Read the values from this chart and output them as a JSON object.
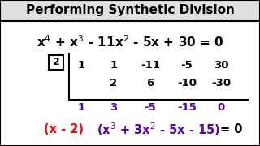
{
  "title": "Performing Synthetic Division",
  "title_color": "#000000",
  "title_bg": "#e0e0e0",
  "bg_color": "#ffffff",
  "divisor": "2",
  "row1": [
    "1",
    "1",
    "-11",
    "-5",
    "30"
  ],
  "row2": [
    "",
    "2",
    "6",
    "-10",
    "-30"
  ],
  "row3": [
    "1",
    "3",
    "-5",
    "-15",
    "0"
  ],
  "red_color": "#ff0000",
  "purple_color": "#5500bb",
  "black_color": "#000000"
}
